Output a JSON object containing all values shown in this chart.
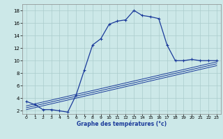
{
  "title": "Graphe des températures (°c)",
  "bg_color": "#cce8e8",
  "grid_color": "#aacccc",
  "line_color": "#1a3a9a",
  "xmin": -0.5,
  "xmax": 23.5,
  "ymin": 1.5,
  "ymax": 19.0,
  "yticks": [
    2,
    4,
    6,
    8,
    10,
    12,
    14,
    16,
    18
  ],
  "xticks": [
    0,
    1,
    2,
    3,
    4,
    5,
    6,
    7,
    8,
    9,
    10,
    11,
    12,
    13,
    14,
    15,
    16,
    17,
    18,
    19,
    20,
    21,
    22,
    23
  ],
  "hours": [
    0,
    1,
    2,
    3,
    4,
    5,
    6,
    7,
    8,
    9,
    10,
    11,
    12,
    13,
    14,
    15,
    16,
    17,
    18,
    19,
    20,
    21,
    22,
    23
  ],
  "temp_main": [
    3.5,
    3.0,
    2.2,
    2.2,
    2.0,
    1.8,
    4.5,
    8.5,
    12.5,
    13.5,
    15.8,
    16.3,
    16.5,
    18.0,
    17.2,
    17.0,
    16.7,
    12.5,
    10.0,
    10.0,
    10.2,
    10.0,
    10.0,
    10.0
  ],
  "line1_x": [
    0,
    23
  ],
  "line1_y": [
    2.2,
    9.2
  ],
  "line2_x": [
    0,
    23
  ],
  "line2_y": [
    2.5,
    9.5
  ],
  "line3_x": [
    0,
    23
  ],
  "line3_y": [
    2.8,
    9.8
  ]
}
